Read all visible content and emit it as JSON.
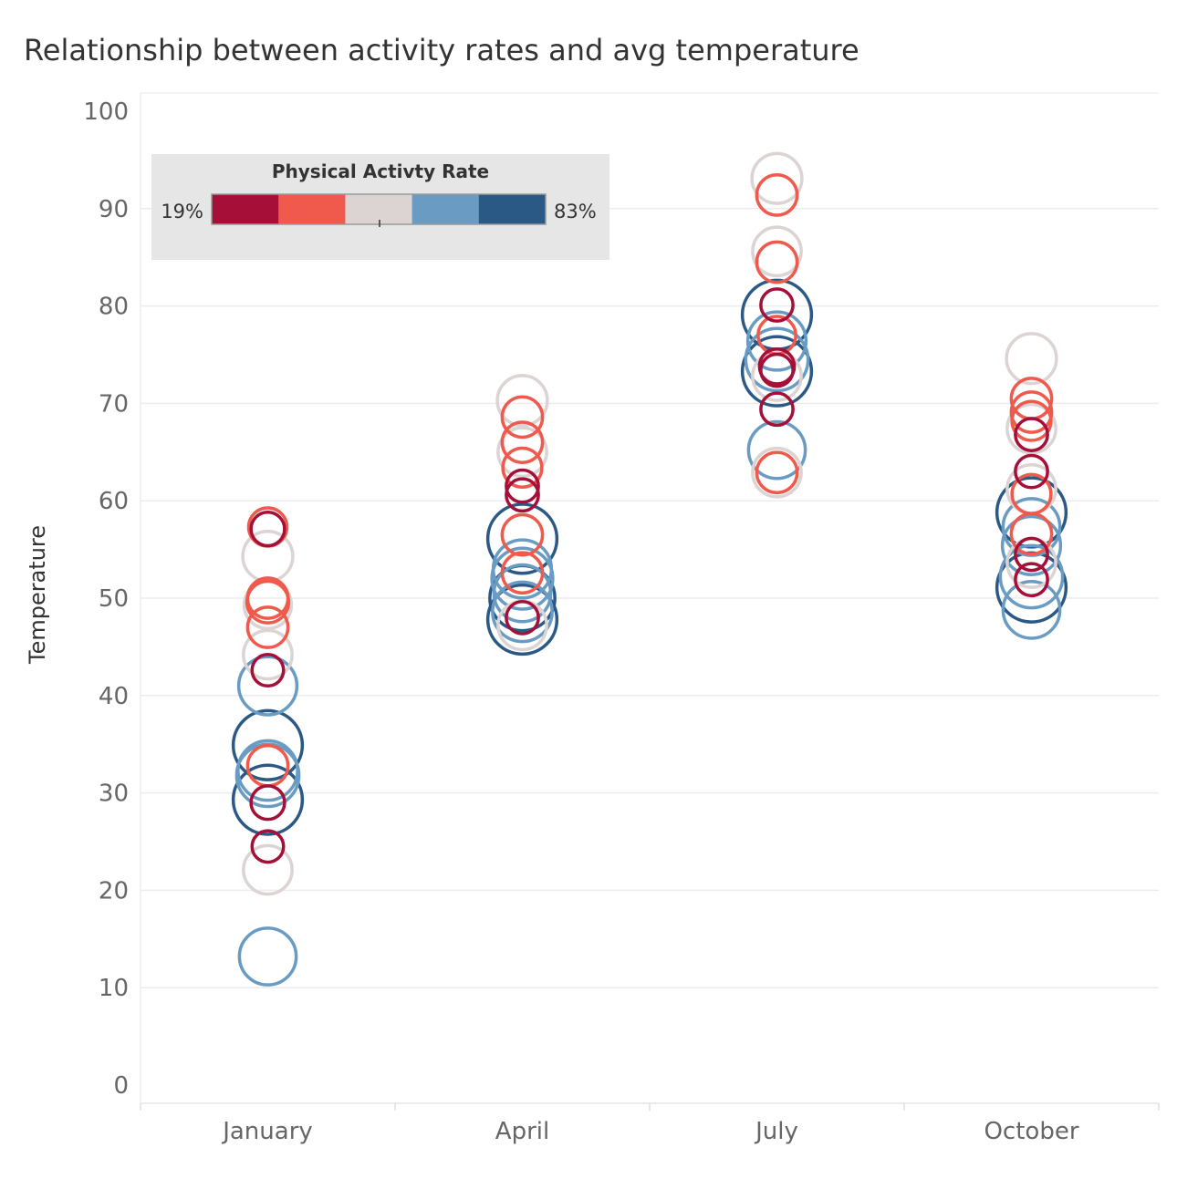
{
  "chart_data": {
    "type": "scatter",
    "title": "Relationship between activity rates and avg temperature",
    "xlabel": "",
    "ylabel": "Temperature",
    "categories": [
      "January",
      "April",
      "July",
      "October"
    ],
    "ylim": [
      0,
      100
    ],
    "yticks": [
      "0",
      "10",
      "20",
      "30",
      "40",
      "50",
      "60",
      "70",
      "80",
      "90",
      "100"
    ],
    "grid": true,
    "legend": {
      "title": "Physical Activty Rate",
      "min_label": "19%",
      "max_label": "83%",
      "placement": "top-left",
      "colors": [
        "#a50f38",
        "#f05a4d",
        "#dcd3d3",
        "#6a9cc3",
        "#2b5986"
      ]
    },
    "points": [
      {
        "category": "January",
        "y": 57.1,
        "rate": 28
      },
      {
        "category": "January",
        "y": 57.3,
        "rate": 35
      },
      {
        "category": "January",
        "y": 54.3,
        "rate": 52
      },
      {
        "category": "January",
        "y": 50.0,
        "rate": 38
      },
      {
        "category": "January",
        "y": 49.6,
        "rate": 40
      },
      {
        "category": "January",
        "y": 49.3,
        "rate": 48
      },
      {
        "category": "January",
        "y": 47.0,
        "rate": 38
      },
      {
        "category": "January",
        "y": 44.2,
        "rate": 50
      },
      {
        "category": "January",
        "y": 42.6,
        "rate": 25
      },
      {
        "category": "January",
        "y": 41.0,
        "rate": 64
      },
      {
        "category": "January",
        "y": 34.9,
        "rate": 80
      },
      {
        "category": "January",
        "y": 32.3,
        "rate": 66
      },
      {
        "category": "January",
        "y": 32.8,
        "rate": 38
      },
      {
        "category": "January",
        "y": 31.8,
        "rate": 70
      },
      {
        "category": "January",
        "y": 29.3,
        "rate": 80
      },
      {
        "category": "January",
        "y": 29.0,
        "rate": 28
      },
      {
        "category": "January",
        "y": 24.5,
        "rate": 25
      },
      {
        "category": "January",
        "y": 22.1,
        "rate": 50
      },
      {
        "category": "January",
        "y": 13.2,
        "rate": 62
      },
      {
        "category": "April",
        "y": 70.3,
        "rate": 52
      },
      {
        "category": "April",
        "y": 68.6,
        "rate": 38
      },
      {
        "category": "April",
        "y": 66.0,
        "rate": 38
      },
      {
        "category": "April",
        "y": 65.0,
        "rate": 50
      },
      {
        "category": "April",
        "y": 63.4,
        "rate": 36
      },
      {
        "category": "April",
        "y": 61.5,
        "rate": 26
      },
      {
        "category": "April",
        "y": 60.6,
        "rate": 26
      },
      {
        "category": "April",
        "y": 56.5,
        "rate": 38
      },
      {
        "category": "April",
        "y": 56.1,
        "rate": 80
      },
      {
        "category": "April",
        "y": 53.0,
        "rate": 64
      },
      {
        "category": "April",
        "y": 52.6,
        "rate": 38
      },
      {
        "category": "April",
        "y": 52.0,
        "rate": 68
      },
      {
        "category": "April",
        "y": 50.5,
        "rate": 62
      },
      {
        "category": "April",
        "y": 50.0,
        "rate": 74
      },
      {
        "category": "April",
        "y": 48.6,
        "rate": 66
      },
      {
        "category": "April",
        "y": 48.0,
        "rate": 26
      },
      {
        "category": "April",
        "y": 47.2,
        "rate": 50
      },
      {
        "category": "April",
        "y": 47.8,
        "rate": 80
      },
      {
        "category": "July",
        "y": 93.1,
        "rate": 52
      },
      {
        "category": "July",
        "y": 91.4,
        "rate": 38
      },
      {
        "category": "July",
        "y": 85.6,
        "rate": 50
      },
      {
        "category": "July",
        "y": 84.5,
        "rate": 38
      },
      {
        "category": "July",
        "y": 80.1,
        "rate": 26
      },
      {
        "category": "July",
        "y": 79.1,
        "rate": 80
      },
      {
        "category": "July",
        "y": 77.0,
        "rate": 34
      },
      {
        "category": "July",
        "y": 76.4,
        "rate": 64
      },
      {
        "category": "July",
        "y": 74.5,
        "rate": 70
      },
      {
        "category": "July",
        "y": 73.8,
        "rate": 30
      },
      {
        "category": "July",
        "y": 73.4,
        "rate": 26
      },
      {
        "category": "July",
        "y": 72.8,
        "rate": 50
      },
      {
        "category": "July",
        "y": 73.3,
        "rate": 80
      },
      {
        "category": "July",
        "y": 69.4,
        "rate": 26
      },
      {
        "category": "July",
        "y": 65.2,
        "rate": 62
      },
      {
        "category": "July",
        "y": 62.9,
        "rate": 50
      },
      {
        "category": "July",
        "y": 62.9,
        "rate": 38
      },
      {
        "category": "October",
        "y": 74.6,
        "rate": 52
      },
      {
        "category": "October",
        "y": 70.5,
        "rate": 38
      },
      {
        "category": "October",
        "y": 69.1,
        "rate": 38
      },
      {
        "category": "October",
        "y": 68.2,
        "rate": 36
      },
      {
        "category": "October",
        "y": 67.4,
        "rate": 50
      },
      {
        "category": "October",
        "y": 66.8,
        "rate": 26
      },
      {
        "category": "October",
        "y": 63.0,
        "rate": 26
      },
      {
        "category": "October",
        "y": 61.2,
        "rate": 50
      },
      {
        "category": "October",
        "y": 60.7,
        "rate": 36
      },
      {
        "category": "October",
        "y": 58.8,
        "rate": 80
      },
      {
        "category": "October",
        "y": 57.3,
        "rate": 62
      },
      {
        "category": "October",
        "y": 56.6,
        "rate": 38
      },
      {
        "category": "October",
        "y": 55.4,
        "rate": 64
      },
      {
        "category": "October",
        "y": 54.5,
        "rate": 26
      },
      {
        "category": "October",
        "y": 53.6,
        "rate": 50
      },
      {
        "category": "October",
        "y": 52.2,
        "rate": 70
      },
      {
        "category": "October",
        "y": 51.9,
        "rate": 26
      },
      {
        "category": "October",
        "y": 51.1,
        "rate": 80
      },
      {
        "category": "October",
        "y": 48.8,
        "rate": 62
      }
    ]
  }
}
